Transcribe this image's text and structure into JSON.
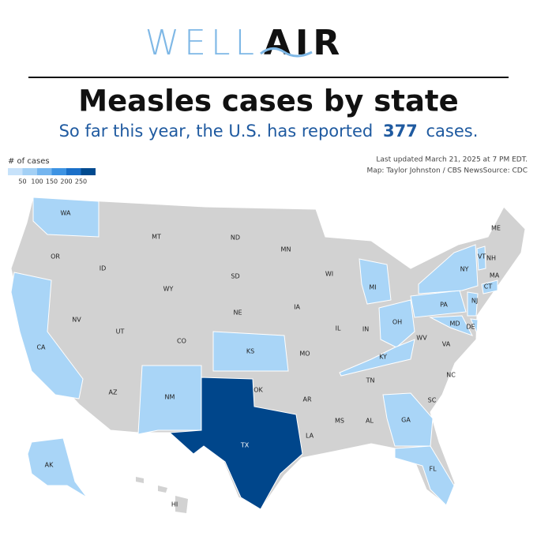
{
  "header": {
    "logo_left": "WELL",
    "logo_right": "AIR",
    "title": "Measles cases by state",
    "subtitle": "So far this year, the U.S. has reported",
    "subtitle_number": "377",
    "subtitle_end": "cases."
  },
  "legend": {
    "title": "# of cases",
    "colors": [
      "#c7e2fa",
      "#a3d0f5",
      "#74b5ef",
      "#3d93e3",
      "#1a6fc8",
      "#004a8f"
    ],
    "ticks": [
      "50",
      "100",
      "150",
      "200",
      "250"
    ]
  },
  "notes": [
    "Last updated March 21, 2025 at 7 PM EDT.",
    "Map: Taylor Johnston / CBS NewsSource: CDC"
  ],
  "map": {
    "base_color": "#d2d2d2",
    "states": [
      {
        "label": "WA",
        "color": "#a9d5f7"
      },
      {
        "label": "OR"
      },
      {
        "label": "CA",
        "color": "#a9d5f7"
      },
      {
        "label": "NV"
      },
      {
        "label": "ID"
      },
      {
        "label": "MT"
      },
      {
        "label": "WY"
      },
      {
        "label": "UT"
      },
      {
        "label": "CO"
      },
      {
        "label": "AZ"
      },
      {
        "label": "NM",
        "color": "#a9d5f7"
      },
      {
        "label": "ND"
      },
      {
        "label": "SD"
      },
      {
        "label": "NE"
      },
      {
        "label": "KS",
        "color": "#a9d5f7"
      },
      {
        "label": "OK"
      },
      {
        "label": "TX",
        "color": "#00468b"
      },
      {
        "label": "MN"
      },
      {
        "label": "IA"
      },
      {
        "label": "MO"
      },
      {
        "label": "AR"
      },
      {
        "label": "LA"
      },
      {
        "label": "WI"
      },
      {
        "label": "IL"
      },
      {
        "label": "MI",
        "color": "#a9d5f7"
      },
      {
        "label": "IN"
      },
      {
        "label": "OH",
        "color": "#a9d5f7"
      },
      {
        "label": "KY",
        "color": "#a9d5f7"
      },
      {
        "label": "TN"
      },
      {
        "label": "MS"
      },
      {
        "label": "AL"
      },
      {
        "label": "GA",
        "color": "#a9d5f7"
      },
      {
        "label": "FL",
        "color": "#a9d5f7"
      },
      {
        "label": "SC"
      },
      {
        "label": "NC"
      },
      {
        "label": "VA"
      },
      {
        "label": "WV"
      },
      {
        "label": "MD",
        "color": "#a9d5f7"
      },
      {
        "label": "DE",
        "color": "#a9d5f7"
      },
      {
        "label": "PA",
        "color": "#a9d5f7"
      },
      {
        "label": "NJ",
        "color": "#a9d5f7"
      },
      {
        "label": "NY",
        "color": "#a9d5f7"
      },
      {
        "label": "CT",
        "color": "#a9d5f7"
      },
      {
        "label": "MA"
      },
      {
        "label": "VT",
        "color": "#a9d5f7"
      },
      {
        "label": "NH"
      },
      {
        "label": "ME"
      },
      {
        "label": "AK",
        "color": "#a9d5f7"
      },
      {
        "label": "HI"
      }
    ]
  }
}
